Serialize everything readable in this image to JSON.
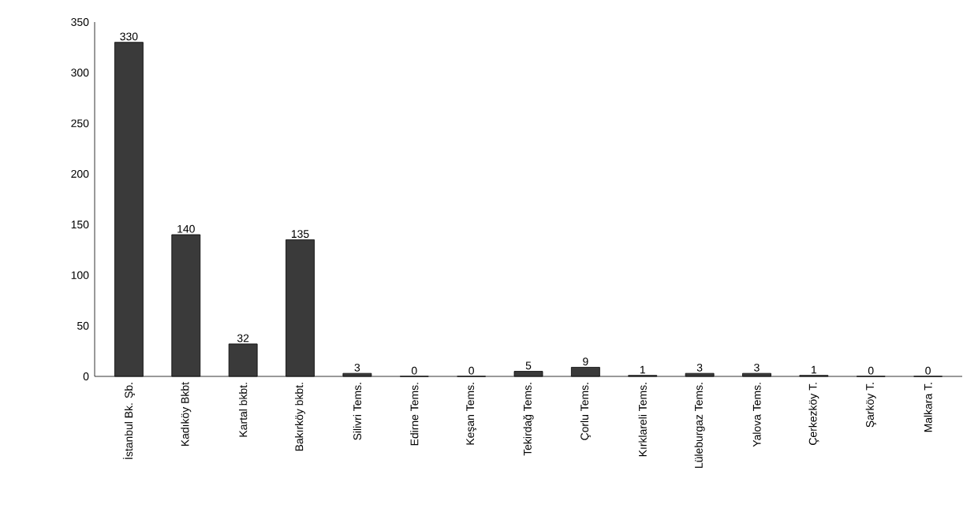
{
  "chart_data": {
    "type": "bar",
    "categories": [
      "İstanbul Bk. Şb.",
      "Kadıköy Bkbt",
      "Kartal bkbt.",
      "Bakırköy bkbt.",
      "Silivri Tems.",
      "Edirne Tems.",
      "Keşan Tems.",
      "Tekirdağ Tems.",
      "Çorlu Tems.",
      "Kırklareli Tems.",
      "Lüleburgaz Tems.",
      "Yalova Tems.",
      "Çerkezköy T.",
      "Şarköy T.",
      "Malkara T."
    ],
    "values": [
      330,
      140,
      32,
      135,
      3,
      0,
      0,
      5,
      9,
      1,
      3,
      3,
      1,
      0,
      0
    ],
    "color": "#3a3a3a",
    "ylim": [
      0,
      350
    ],
    "yticks": [
      0,
      50,
      100,
      150,
      200,
      250,
      300,
      350
    ],
    "data_labels": true
  }
}
